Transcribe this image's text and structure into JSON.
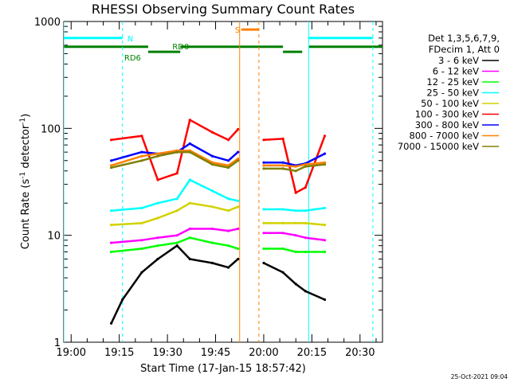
{
  "chart_data": {
    "type": "line",
    "title": "RHESSI Observing Summary Count Rates",
    "xlabel": "Start Time (17-Jan-15 18:57:42)",
    "ylabel": "Count Rate (s",
    "ylabel_sup1": "-1",
    "ylabel_mid": " detector",
    "ylabel_sup2": "-1",
    "ylabel_end": ")",
    "y_scale": "log",
    "ylim": [
      1,
      1000
    ],
    "xlim": [
      "18:57:42",
      "20:37:00"
    ],
    "x_ticks": [
      "19:00",
      "19:15",
      "19:30",
      "19:45",
      "20:00",
      "20:15",
      "20:30"
    ],
    "y_ticks": [
      {
        "value": 1,
        "label": "1"
      },
      {
        "value": 10,
        "label": "10"
      },
      {
        "value": 100,
        "label": "100"
      },
      {
        "value": 1000,
        "label": "1000"
      }
    ],
    "legend_header": [
      "Det 1,3,5,6,7,9,",
      "FDecim 1, Att 0"
    ],
    "legend_placement": "right",
    "timestamp": "25-Oct-2021 09:04",
    "series": [
      {
        "name": "3 - 6 keV",
        "color": "#000000",
        "points": [
          [
            "19:12:30",
            1.5
          ],
          [
            "19:16:00",
            2.5
          ],
          [
            "19:22:00",
            4.5
          ],
          [
            "19:27:00",
            6.0
          ],
          [
            "19:33:00",
            8.0
          ],
          [
            "19:37:00",
            6.0
          ],
          [
            "19:44:00",
            5.5
          ],
          [
            "19:49:00",
            5.0
          ],
          [
            "19:52:00",
            6.0
          ],
          [
            "20:00:00",
            5.5
          ],
          [
            "20:06:00",
            4.5
          ],
          [
            "20:10:00",
            3.5
          ],
          [
            "20:13:00",
            3.0
          ],
          [
            "20:19:00",
            2.5
          ]
        ]
      },
      {
        "name": "6 - 12 keV",
        "color": "#ff00ff",
        "points": [
          [
            "19:12:30",
            8.5
          ],
          [
            "19:22:00",
            9.0
          ],
          [
            "19:27:00",
            9.5
          ],
          [
            "19:33:00",
            10.0
          ],
          [
            "19:37:00",
            11.5
          ],
          [
            "19:44:00",
            11.5
          ],
          [
            "19:49:00",
            11.0
          ],
          [
            "19:52:00",
            11.5
          ],
          [
            "20:00:00",
            10.5
          ],
          [
            "20:06:00",
            10.5
          ],
          [
            "20:10:00",
            10.0
          ],
          [
            "20:13:00",
            9.5
          ],
          [
            "20:19:00",
            9.0
          ]
        ]
      },
      {
        "name": "12 - 25 keV",
        "color": "#00ff00",
        "points": [
          [
            "19:12:30",
            7.0
          ],
          [
            "19:22:00",
            7.5
          ],
          [
            "19:27:00",
            8.0
          ],
          [
            "19:33:00",
            8.5
          ],
          [
            "19:37:00",
            9.5
          ],
          [
            "19:44:00",
            8.5
          ],
          [
            "19:49:00",
            8.0
          ],
          [
            "19:52:00",
            7.5
          ],
          [
            "20:00:00",
            7.5
          ],
          [
            "20:06:00",
            7.5
          ],
          [
            "20:10:00",
            7.0
          ],
          [
            "20:13:00",
            7.0
          ],
          [
            "20:19:00",
            7.0
          ]
        ]
      },
      {
        "name": "25 - 50 keV",
        "color": "#00ffff",
        "points": [
          [
            "19:12:30",
            17.0
          ],
          [
            "19:22:00",
            18.0
          ],
          [
            "19:27:00",
            20.0
          ],
          [
            "19:33:00",
            22.0
          ],
          [
            "19:37:00",
            33.0
          ],
          [
            "19:44:00",
            26.0
          ],
          [
            "19:49:00",
            22.0
          ],
          [
            "19:52:00",
            21.0
          ],
          [
            "20:00:00",
            17.5
          ],
          [
            "20:06:00",
            17.5
          ],
          [
            "20:10:00",
            17.0
          ],
          [
            "20:13:00",
            17.0
          ],
          [
            "20:19:00",
            18.0
          ]
        ]
      },
      {
        "name": "50 - 100 keV",
        "color": "#d2d200",
        "points": [
          [
            "19:12:30",
            12.5
          ],
          [
            "19:22:00",
            13.0
          ],
          [
            "19:27:00",
            14.5
          ],
          [
            "19:33:00",
            17.0
          ],
          [
            "19:37:00",
            20.0
          ],
          [
            "19:44:00",
            18.5
          ],
          [
            "19:49:00",
            17.0
          ],
          [
            "19:52:00",
            18.5
          ],
          [
            "20:00:00",
            13.0
          ],
          [
            "20:06:00",
            13.0
          ],
          [
            "20:10:00",
            13.0
          ],
          [
            "20:13:00",
            13.0
          ],
          [
            "20:19:00",
            12.5
          ]
        ]
      },
      {
        "name": "100 - 300 keV",
        "color": "#ff0000",
        "points": [
          [
            "19:12:30",
            78.0
          ],
          [
            "19:22:00",
            85.0
          ],
          [
            "19:27:00",
            33.0
          ],
          [
            "19:33:00",
            38.0
          ],
          [
            "19:37:00",
            120.0
          ],
          [
            "19:44:00",
            92.0
          ],
          [
            "19:49:00",
            78.0
          ],
          [
            "19:52:00",
            98.0
          ],
          [
            "20:00:00",
            78.0
          ],
          [
            "20:06:00",
            80.0
          ],
          [
            "20:10:00",
            25.0
          ],
          [
            "20:13:00",
            28.0
          ],
          [
            "20:19:00",
            85.0
          ]
        ]
      },
      {
        "name": "300 - 800 keV",
        "color": "#0000ff",
        "points": [
          [
            "19:12:30",
            50.0
          ],
          [
            "19:22:00",
            60.0
          ],
          [
            "19:27:00",
            58.0
          ],
          [
            "19:33:00",
            60.0
          ],
          [
            "19:37:00",
            72.0
          ],
          [
            "19:44:00",
            55.0
          ],
          [
            "19:49:00",
            50.0
          ],
          [
            "19:52:00",
            60.0
          ],
          [
            "20:00:00",
            48.0
          ],
          [
            "20:06:00",
            48.0
          ],
          [
            "20:10:00",
            45.0
          ],
          [
            "20:13:00",
            47.0
          ],
          [
            "20:19:00",
            58.0
          ]
        ]
      },
      {
        "name": "800 - 7000 keV",
        "color": "#ff8000",
        "points": [
          [
            "19:12:30",
            45.0
          ],
          [
            "19:22:00",
            55.0
          ],
          [
            "19:27:00",
            58.0
          ],
          [
            "19:33:00",
            62.0
          ],
          [
            "19:37:00",
            62.0
          ],
          [
            "19:44:00",
            48.0
          ],
          [
            "19:49:00",
            45.0
          ],
          [
            "19:52:00",
            52.0
          ],
          [
            "20:00:00",
            45.0
          ],
          [
            "20:06:00",
            45.0
          ],
          [
            "20:10:00",
            44.0
          ],
          [
            "20:13:00",
            46.0
          ],
          [
            "20:19:00",
            48.0
          ]
        ]
      },
      {
        "name": "7000 - 15000 keV",
        "color": "#808000",
        "points": [
          [
            "19:12:30",
            43.0
          ],
          [
            "19:22:00",
            50.0
          ],
          [
            "19:27:00",
            55.0
          ],
          [
            "19:33:00",
            60.0
          ],
          [
            "19:37:00",
            60.0
          ],
          [
            "19:44:00",
            46.0
          ],
          [
            "19:49:00",
            43.0
          ],
          [
            "19:52:00",
            50.0
          ],
          [
            "20:00:00",
            42.0
          ],
          [
            "20:06:00",
            42.0
          ],
          [
            "20:10:00",
            40.0
          ],
          [
            "20:13:00",
            44.0
          ],
          [
            "20:19:00",
            46.0
          ]
        ]
      }
    ],
    "gaps": [
      [
        "19:52:30",
        "20:00:00"
      ]
    ],
    "flag_bars": [
      {
        "label": "N",
        "color": "#00ffff",
        "value": 700,
        "segments": [
          [
            "18:57:42",
            "19:16:00"
          ],
          [
            "20:14:00",
            "20:34:00"
          ]
        ]
      },
      {
        "label": "S",
        "color": "#ff8000",
        "value": 840,
        "segments": [
          [
            "19:53:00",
            "19:58:30"
          ]
        ]
      },
      {
        "label": "RD0",
        "color": "#008000",
        "value": 580,
        "segments": [
          [
            "18:57:42",
            "19:24:00"
          ],
          [
            "19:34:00",
            "20:06:00"
          ],
          [
            "20:14:00",
            "20:37:00"
          ]
        ]
      },
      {
        "label": "RD6",
        "color": "#008000",
        "value": 520,
        "segments": [
          [
            "19:24:00",
            "19:34:00"
          ],
          [
            "20:06:00",
            "20:12:00"
          ]
        ]
      }
    ],
    "vertical_lines": [
      {
        "time": "18:57:42",
        "color": "#00ffff",
        "style": "solid"
      },
      {
        "time": "19:16:00",
        "color": "#00ffff",
        "style": "dashed"
      },
      {
        "time": "19:52:30",
        "color": "#ff8000",
        "style": "solid"
      },
      {
        "time": "19:58:30",
        "color": "#ff8000",
        "style": "dashed"
      },
      {
        "time": "20:14:00",
        "color": "#00ffff",
        "style": "solid"
      },
      {
        "time": "20:34:00",
        "color": "#00ffff",
        "style": "dashed"
      }
    ]
  }
}
